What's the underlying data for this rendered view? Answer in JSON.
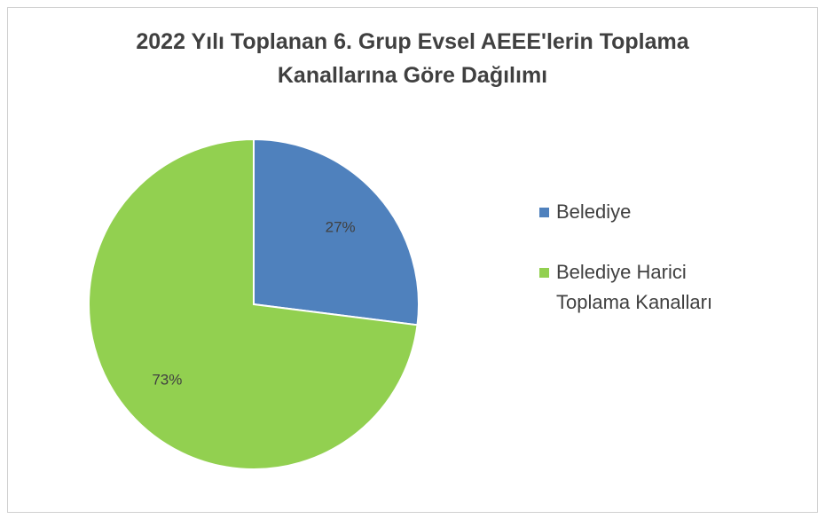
{
  "chart_data": {
    "type": "pie",
    "title": "2022 Yılı Toplanan 6. Grup Evsel AEEE'lerin Toplama Kanallarına Göre Dağılımı",
    "categories": [
      "Belediye",
      "Belediye Harici Toplama Kanalları"
    ],
    "values": [
      27,
      73
    ],
    "value_labels": [
      "27%",
      "73%"
    ],
    "colors": [
      "#4f81bd",
      "#92d050"
    ],
    "legend": "right"
  }
}
